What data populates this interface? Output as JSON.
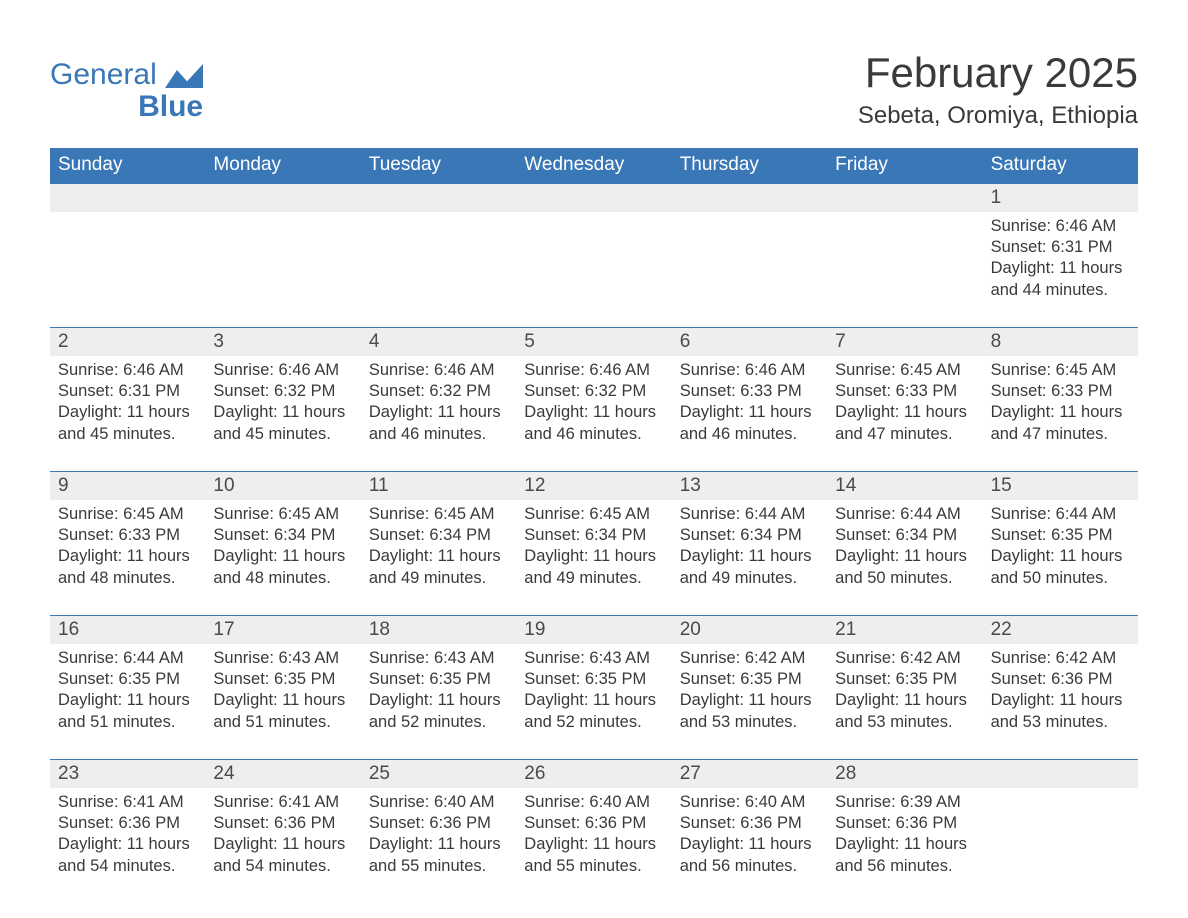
{
  "brand": {
    "name_line1": "General",
    "name_line2": "Blue",
    "flag_color": "#3a77b7",
    "text_color": "#3a77b7"
  },
  "header": {
    "title": "February 2025",
    "location": "Sebeta, Oromiya, Ethiopia"
  },
  "colors": {
    "header_bg": "#3a77b7",
    "header_text": "#ffffff",
    "daynum_bg": "#eeeeee",
    "week_border": "#3a77b7",
    "body_text": "#3a3a3a",
    "page_bg": "#ffffff"
  },
  "weekdays": [
    "Sunday",
    "Monday",
    "Tuesday",
    "Wednesday",
    "Thursday",
    "Friday",
    "Saturday"
  ],
  "weeks": [
    [
      null,
      null,
      null,
      null,
      null,
      null,
      {
        "day": "1",
        "sunrise": "Sunrise: 6:46 AM",
        "sunset": "Sunset: 6:31 PM",
        "daylight": "Daylight: 11 hours and 44 minutes."
      }
    ],
    [
      {
        "day": "2",
        "sunrise": "Sunrise: 6:46 AM",
        "sunset": "Sunset: 6:31 PM",
        "daylight": "Daylight: 11 hours and 45 minutes."
      },
      {
        "day": "3",
        "sunrise": "Sunrise: 6:46 AM",
        "sunset": "Sunset: 6:32 PM",
        "daylight": "Daylight: 11 hours and 45 minutes."
      },
      {
        "day": "4",
        "sunrise": "Sunrise: 6:46 AM",
        "sunset": "Sunset: 6:32 PM",
        "daylight": "Daylight: 11 hours and 46 minutes."
      },
      {
        "day": "5",
        "sunrise": "Sunrise: 6:46 AM",
        "sunset": "Sunset: 6:32 PM",
        "daylight": "Daylight: 11 hours and 46 minutes."
      },
      {
        "day": "6",
        "sunrise": "Sunrise: 6:46 AM",
        "sunset": "Sunset: 6:33 PM",
        "daylight": "Daylight: 11 hours and 46 minutes."
      },
      {
        "day": "7",
        "sunrise": "Sunrise: 6:45 AM",
        "sunset": "Sunset: 6:33 PM",
        "daylight": "Daylight: 11 hours and 47 minutes."
      },
      {
        "day": "8",
        "sunrise": "Sunrise: 6:45 AM",
        "sunset": "Sunset: 6:33 PM",
        "daylight": "Daylight: 11 hours and 47 minutes."
      }
    ],
    [
      {
        "day": "9",
        "sunrise": "Sunrise: 6:45 AM",
        "sunset": "Sunset: 6:33 PM",
        "daylight": "Daylight: 11 hours and 48 minutes."
      },
      {
        "day": "10",
        "sunrise": "Sunrise: 6:45 AM",
        "sunset": "Sunset: 6:34 PM",
        "daylight": "Daylight: 11 hours and 48 minutes."
      },
      {
        "day": "11",
        "sunrise": "Sunrise: 6:45 AM",
        "sunset": "Sunset: 6:34 PM",
        "daylight": "Daylight: 11 hours and 49 minutes."
      },
      {
        "day": "12",
        "sunrise": "Sunrise: 6:45 AM",
        "sunset": "Sunset: 6:34 PM",
        "daylight": "Daylight: 11 hours and 49 minutes."
      },
      {
        "day": "13",
        "sunrise": "Sunrise: 6:44 AM",
        "sunset": "Sunset: 6:34 PM",
        "daylight": "Daylight: 11 hours and 49 minutes."
      },
      {
        "day": "14",
        "sunrise": "Sunrise: 6:44 AM",
        "sunset": "Sunset: 6:34 PM",
        "daylight": "Daylight: 11 hours and 50 minutes."
      },
      {
        "day": "15",
        "sunrise": "Sunrise: 6:44 AM",
        "sunset": "Sunset: 6:35 PM",
        "daylight": "Daylight: 11 hours and 50 minutes."
      }
    ],
    [
      {
        "day": "16",
        "sunrise": "Sunrise: 6:44 AM",
        "sunset": "Sunset: 6:35 PM",
        "daylight": "Daylight: 11 hours and 51 minutes."
      },
      {
        "day": "17",
        "sunrise": "Sunrise: 6:43 AM",
        "sunset": "Sunset: 6:35 PM",
        "daylight": "Daylight: 11 hours and 51 minutes."
      },
      {
        "day": "18",
        "sunrise": "Sunrise: 6:43 AM",
        "sunset": "Sunset: 6:35 PM",
        "daylight": "Daylight: 11 hours and 52 minutes."
      },
      {
        "day": "19",
        "sunrise": "Sunrise: 6:43 AM",
        "sunset": "Sunset: 6:35 PM",
        "daylight": "Daylight: 11 hours and 52 minutes."
      },
      {
        "day": "20",
        "sunrise": "Sunrise: 6:42 AM",
        "sunset": "Sunset: 6:35 PM",
        "daylight": "Daylight: 11 hours and 53 minutes."
      },
      {
        "day": "21",
        "sunrise": "Sunrise: 6:42 AM",
        "sunset": "Sunset: 6:35 PM",
        "daylight": "Daylight: 11 hours and 53 minutes."
      },
      {
        "day": "22",
        "sunrise": "Sunrise: 6:42 AM",
        "sunset": "Sunset: 6:36 PM",
        "daylight": "Daylight: 11 hours and 53 minutes."
      }
    ],
    [
      {
        "day": "23",
        "sunrise": "Sunrise: 6:41 AM",
        "sunset": "Sunset: 6:36 PM",
        "daylight": "Daylight: 11 hours and 54 minutes."
      },
      {
        "day": "24",
        "sunrise": "Sunrise: 6:41 AM",
        "sunset": "Sunset: 6:36 PM",
        "daylight": "Daylight: 11 hours and 54 minutes."
      },
      {
        "day": "25",
        "sunrise": "Sunrise: 6:40 AM",
        "sunset": "Sunset: 6:36 PM",
        "daylight": "Daylight: 11 hours and 55 minutes."
      },
      {
        "day": "26",
        "sunrise": "Sunrise: 6:40 AM",
        "sunset": "Sunset: 6:36 PM",
        "daylight": "Daylight: 11 hours and 55 minutes."
      },
      {
        "day": "27",
        "sunrise": "Sunrise: 6:40 AM",
        "sunset": "Sunset: 6:36 PM",
        "daylight": "Daylight: 11 hours and 56 minutes."
      },
      {
        "day": "28",
        "sunrise": "Sunrise: 6:39 AM",
        "sunset": "Sunset: 6:36 PM",
        "daylight": "Daylight: 11 hours and 56 minutes."
      },
      null
    ]
  ]
}
